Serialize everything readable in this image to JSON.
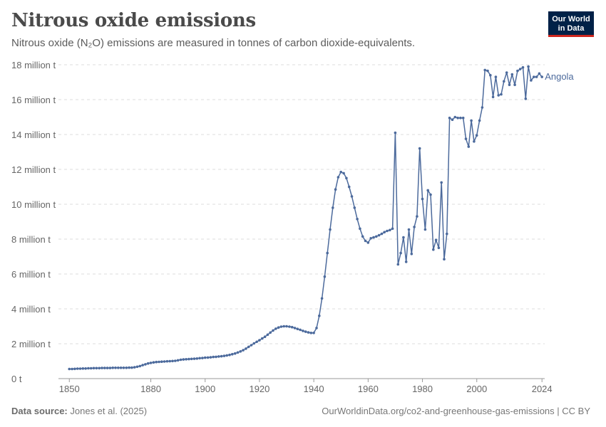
{
  "header": {
    "title": "Nitrous oxide emissions",
    "subtitle": "Nitrous oxide (N₂O) emissions are measured in tonnes of carbon dioxide-equivalents.",
    "logo_line1": "Our World",
    "logo_line2": "in Data"
  },
  "footer": {
    "source_label": "Data source:",
    "source_text": "Jones et al. (2025)",
    "url_license": "OurWorldinData.org/co2-and-greenhouse-gas-emissions | CC BY"
  },
  "colors": {
    "series": "#4c6a9c",
    "logo_bg": "#002147",
    "logo_accent": "#ce261e",
    "grid": "#dddddd",
    "axis_text": "#666666"
  },
  "chart_data": {
    "type": "line",
    "title": "Nitrous oxide emissions",
    "xlabel": "",
    "ylabel": "",
    "xlim": [
      1850,
      2024
    ],
    "ylim": [
      0,
      18
    ],
    "y_unit": "million t",
    "x_ticks": [
      "1850",
      "1880",
      "1900",
      "1920",
      "1940",
      "1960",
      "1980",
      "2000",
      "2024"
    ],
    "y_ticks": [
      "0 t",
      "2 million t",
      "4 million t",
      "6 million t",
      "8 million t",
      "10 million t",
      "12 million t",
      "14 million t",
      "16 million t",
      "18 million t"
    ],
    "grid": "horizontal dashed",
    "legend": "label at line end, right",
    "series": [
      {
        "name": "Angola",
        "x": [
          1850,
          1851,
          1852,
          1853,
          1854,
          1855,
          1856,
          1857,
          1858,
          1859,
          1860,
          1861,
          1862,
          1863,
          1864,
          1865,
          1866,
          1867,
          1868,
          1869,
          1870,
          1871,
          1872,
          1873,
          1874,
          1875,
          1876,
          1877,
          1878,
          1879,
          1880,
          1881,
          1882,
          1883,
          1884,
          1885,
          1886,
          1887,
          1888,
          1889,
          1890,
          1891,
          1892,
          1893,
          1894,
          1895,
          1896,
          1897,
          1898,
          1899,
          1900,
          1901,
          1902,
          1903,
          1904,
          1905,
          1906,
          1907,
          1908,
          1909,
          1910,
          1911,
          1912,
          1913,
          1914,
          1915,
          1916,
          1917,
          1918,
          1919,
          1920,
          1921,
          1922,
          1923,
          1924,
          1925,
          1926,
          1927,
          1928,
          1929,
          1930,
          1931,
          1932,
          1933,
          1934,
          1935,
          1936,
          1937,
          1938,
          1939,
          1940,
          1941,
          1942,
          1943,
          1944,
          1945,
          1946,
          1947,
          1948,
          1949,
          1950,
          1951,
          1952,
          1953,
          1954,
          1955,
          1956,
          1957,
          1958,
          1959,
          1960,
          1961,
          1962,
          1963,
          1964,
          1965,
          1966,
          1967,
          1968,
          1969,
          1970,
          1971,
          1972,
          1973,
          1974,
          1975,
          1976,
          1977,
          1978,
          1979,
          1980,
          1981,
          1982,
          1983,
          1984,
          1985,
          1986,
          1987,
          1988,
          1989,
          1990,
          1991,
          1992,
          1993,
          1994,
          1995,
          1996,
          1997,
          1998,
          1999,
          2000,
          2001,
          2002,
          2003,
          2004,
          2005,
          2006,
          2007,
          2008,
          2009,
          2010,
          2011,
          2012,
          2013,
          2014,
          2015,
          2016,
          2017,
          2018,
          2019,
          2020,
          2021,
          2022,
          2023,
          2024
        ],
        "values": [
          0.55,
          0.55,
          0.56,
          0.57,
          0.57,
          0.58,
          0.58,
          0.59,
          0.59,
          0.6,
          0.6,
          0.6,
          0.61,
          0.61,
          0.61,
          0.61,
          0.62,
          0.62,
          0.62,
          0.62,
          0.62,
          0.62,
          0.63,
          0.63,
          0.65,
          0.68,
          0.72,
          0.77,
          0.82,
          0.87,
          0.9,
          0.93,
          0.95,
          0.96,
          0.97,
          0.98,
          0.99,
          1.0,
          1.01,
          1.02,
          1.05,
          1.08,
          1.1,
          1.11,
          1.12,
          1.13,
          1.14,
          1.15,
          1.17,
          1.18,
          1.2,
          1.21,
          1.22,
          1.24,
          1.25,
          1.27,
          1.28,
          1.3,
          1.33,
          1.36,
          1.4,
          1.44,
          1.5,
          1.56,
          1.63,
          1.72,
          1.82,
          1.92,
          2.02,
          2.11,
          2.2,
          2.3,
          2.4,
          2.52,
          2.64,
          2.76,
          2.86,
          2.93,
          2.98,
          3.0,
          3.0,
          2.98,
          2.95,
          2.9,
          2.85,
          2.8,
          2.74,
          2.69,
          2.65,
          2.62,
          2.62,
          2.9,
          3.6,
          4.6,
          5.85,
          7.2,
          8.55,
          9.8,
          10.85,
          11.55,
          11.85,
          11.78,
          11.5,
          11.0,
          10.45,
          9.8,
          9.15,
          8.6,
          8.15,
          7.9,
          7.8,
          8.05,
          8.1,
          8.15,
          8.22,
          8.3,
          8.4,
          8.47,
          8.52,
          8.6,
          14.1,
          6.55,
          7.2,
          8.1,
          6.7,
          8.55,
          7.15,
          8.7,
          9.3,
          13.2,
          10.3,
          8.55,
          10.8,
          10.55,
          7.4,
          7.95,
          7.5,
          11.25,
          6.85,
          8.3,
          14.95,
          14.85,
          15.0,
          14.95,
          14.95,
          14.95,
          13.75,
          13.3,
          14.8,
          13.6,
          13.95,
          14.8,
          15.55,
          17.7,
          17.65,
          17.4,
          16.15,
          17.3,
          16.25,
          16.3,
          17.05,
          17.55,
          16.85,
          17.45,
          16.85,
          17.65,
          17.75,
          17.85,
          16.05,
          17.9,
          17.1,
          17.3,
          17.3,
          17.5,
          17.3
        ]
      }
    ]
  }
}
